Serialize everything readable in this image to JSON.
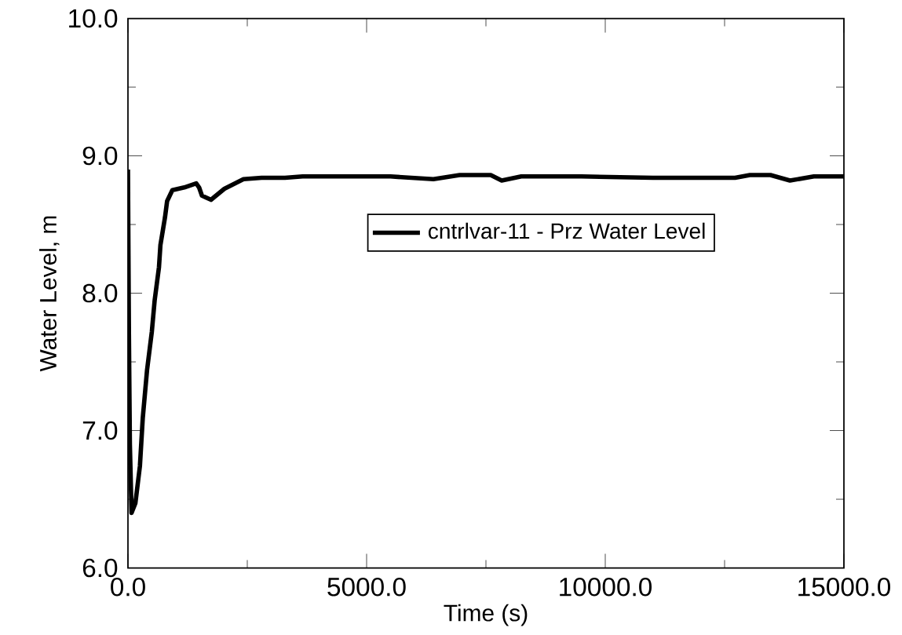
{
  "chart_data": {
    "type": "line",
    "xlabel": "Time (s)",
    "ylabel": "Water Level, m",
    "xlim": [
      0,
      15000
    ],
    "ylim": [
      6.0,
      10.0
    ],
    "xticks": [
      {
        "value": 0,
        "label": "0.0"
      },
      {
        "value": 5000,
        "label": "5000.0"
      },
      {
        "value": 10000,
        "label": "10000.0"
      },
      {
        "value": 15000,
        "label": "15000.0"
      }
    ],
    "yticks": [
      {
        "value": 6.0,
        "label": "6.0"
      },
      {
        "value": 7.0,
        "label": "7.0"
      },
      {
        "value": 8.0,
        "label": "8.0"
      },
      {
        "value": 9.0,
        "label": "9.0"
      },
      {
        "value": 10.0,
        "label": "10.0"
      }
    ],
    "grid": false,
    "legend": "right",
    "marker": "none",
    "line_style": "solid",
    "series": [
      {
        "name": "cntrlvar-11 - Prz Water Level",
        "color": "#000000",
        "x": [
          0,
          20,
          40,
          75,
          155,
          250,
          310,
          400,
          500,
          560,
          650,
          680,
          775,
          820,
          930,
          1180,
          1430,
          1490,
          1550,
          1740,
          2020,
          2420,
          2800,
          3290,
          3660,
          4560,
          5500,
          6400,
          6950,
          7600,
          7830,
          8240,
          9500,
          11000,
          12720,
          13030,
          13460,
          13870,
          14370,
          15000
        ],
        "values": [
          8.9,
          7.7,
          6.9,
          6.4,
          6.47,
          6.74,
          7.09,
          7.44,
          7.72,
          7.95,
          8.19,
          8.35,
          8.55,
          8.67,
          8.75,
          8.77,
          8.8,
          8.77,
          8.71,
          8.68,
          8.76,
          8.83,
          8.84,
          8.84,
          8.85,
          8.85,
          8.85,
          8.83,
          8.86,
          8.86,
          8.82,
          8.85,
          8.85,
          8.84,
          8.84,
          8.86,
          8.86,
          8.82,
          8.85,
          8.85
        ]
      }
    ]
  }
}
